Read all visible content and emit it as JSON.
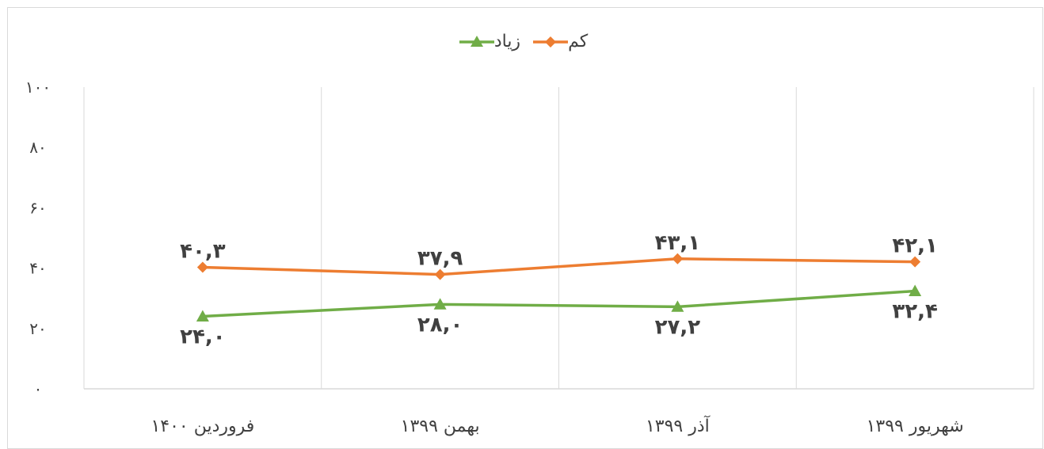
{
  "chart_data": {
    "type": "line",
    "categories": [
      "شهریور ۱۳۹۹",
      "آذر ۱۳۹۹",
      "بهمن ۱۳۹۹",
      "فروردین ۱۴۰۰"
    ],
    "series": [
      {
        "name": "کم",
        "color": "#ED7D31",
        "marker": "diamond",
        "values": [
          42.1,
          43.1,
          37.9,
          40.3
        ],
        "labels": [
          "۴۲,۱",
          "۴۳,۱",
          "۳۷,۹",
          "۴۰,۳"
        ],
        "label_position": "above"
      },
      {
        "name": "زیاد",
        "color": "#70AD47",
        "marker": "triangle",
        "values": [
          32.4,
          27.2,
          28.0,
          24.0
        ],
        "labels": [
          "۳۲,۴",
          "۲۷,۲",
          "۲۸,۰",
          "۲۴,۰"
        ],
        "label_position": "below"
      }
    ],
    "y_ticks": [
      0,
      20,
      40,
      60,
      80,
      100
    ],
    "y_tick_labels": [
      "۰",
      "۲۰",
      "۴۰",
      "۶۰",
      "۸۰",
      "۱۰۰"
    ],
    "ylim": [
      0,
      100
    ],
    "grid": "vertical",
    "legend": "top-center"
  }
}
